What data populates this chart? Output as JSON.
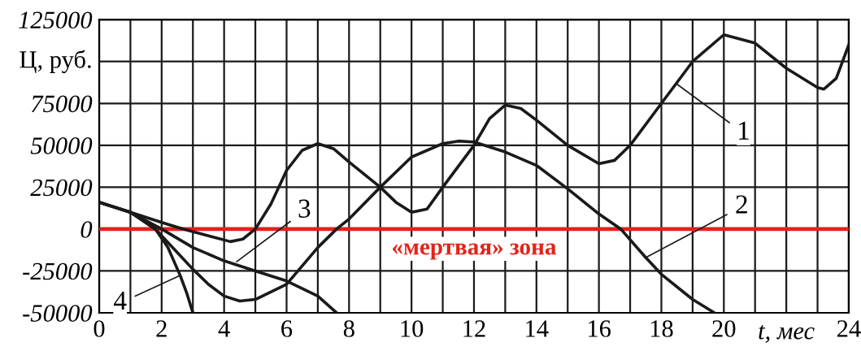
{
  "chart_data": {
    "type": "line",
    "xlabel": "t, мес",
    "ylabel": "Ц, руб.",
    "xlim": [
      0,
      24
    ],
    "ylim": [
      -50000,
      125000
    ],
    "xticks": [
      0,
      {
        "value": 1,
        "label": null
      },
      2,
      {
        "value": 3,
        "label": null
      },
      4,
      {
        "value": 5,
        "label": null
      },
      6,
      {
        "value": 7,
        "label": null
      },
      8,
      {
        "value": 9,
        "label": null
      },
      10,
      {
        "value": 11,
        "label": null
      },
      12,
      {
        "value": 13,
        "label": null
      },
      14,
      {
        "value": 15,
        "label": null
      },
      16,
      {
        "value": 17,
        "label": null
      },
      18,
      {
        "value": 19,
        "label": null
      },
      20,
      {
        "value": 21,
        "label": null
      },
      {
        "value": 22,
        "label": null
      },
      {
        "value": 23,
        "label": null
      },
      24
    ],
    "yticks": [
      -50000,
      -25000,
      0,
      25000,
      50000,
      75000,
      {
        "value": 100000,
        "label": null
      },
      125000
    ],
    "grid": true,
    "legend": false,
    "marker": "none",
    "line_style": "solid",
    "series": [
      {
        "color": "#1a1a1a",
        "x": [
          0,
          1,
          2,
          2.7,
          3.5,
          4.2,
          4.6,
          5,
          5.5,
          6,
          6.5,
          7,
          7.5,
          8,
          9,
          9.5,
          10,
          10.5,
          11,
          12,
          12.5,
          13,
          13.5,
          14,
          15,
          16,
          16.5,
          17,
          18,
          19,
          20,
          21,
          22,
          23,
          23.2,
          23.6,
          24
        ],
        "values": [
          16000,
          10000,
          4000,
          0,
          -4000,
          -7500,
          -6000,
          0,
          15000,
          35000,
          47000,
          51000,
          48000,
          40000,
          25000,
          16000,
          10000,
          12000,
          25000,
          50000,
          66000,
          74000,
          72000,
          65000,
          50000,
          39000,
          41000,
          50000,
          75000,
          100000,
          116000,
          111000,
          96000,
          84500,
          83500,
          90000,
          110000
        ]
      },
      {
        "color": "#1a1a1a",
        "x": [
          0,
          1,
          1.8,
          2.5,
          3,
          3.5,
          4,
          4.5,
          5,
          6,
          7,
          7.6,
          8,
          9,
          10,
          11,
          11.5,
          12,
          13,
          14,
          15,
          16,
          16.7,
          17.5,
          18,
          19,
          19.7
        ],
        "values": [
          16000,
          10000,
          0,
          -14000,
          -24000,
          -33000,
          -40000,
          -43000,
          -42000,
          -33000,
          -11000,
          0,
          6000,
          25000,
          43000,
          51000,
          52500,
          52000,
          46000,
          38000,
          24000,
          9000,
          0,
          -17000,
          -27000,
          -42000,
          -50000
        ]
      },
      {
        "color": "#1a1a1a",
        "x": [
          0,
          1,
          2,
          3,
          4,
          5,
          6,
          7,
          7.6
        ],
        "values": [
          16000,
          10000,
          0,
          -11000,
          -19000,
          -25000,
          -31000,
          -40000,
          -50000
        ]
      },
      {
        "color": "#1a1a1a",
        "x": [
          0,
          1,
          1.8,
          2.2,
          2.6,
          2.8,
          3.0
        ],
        "values": [
          16000,
          10000,
          0,
          -11000,
          -28000,
          -38000,
          -50000
        ]
      }
    ],
    "ref_lines": [
      {
        "axis": "y",
        "value": 0,
        "label": "«мертвая» зона",
        "color": "#e2231a"
      }
    ],
    "annotations": [
      {
        "text": "1",
        "x": 18.46,
        "y": 87000
      },
      {
        "text": "2",
        "x": 17.5,
        "y": -17000
      },
      {
        "text": "3",
        "x": 4.4,
        "y": -19500
      },
      {
        "text": "4",
        "x": 2.55,
        "y": -28000
      }
    ]
  }
}
